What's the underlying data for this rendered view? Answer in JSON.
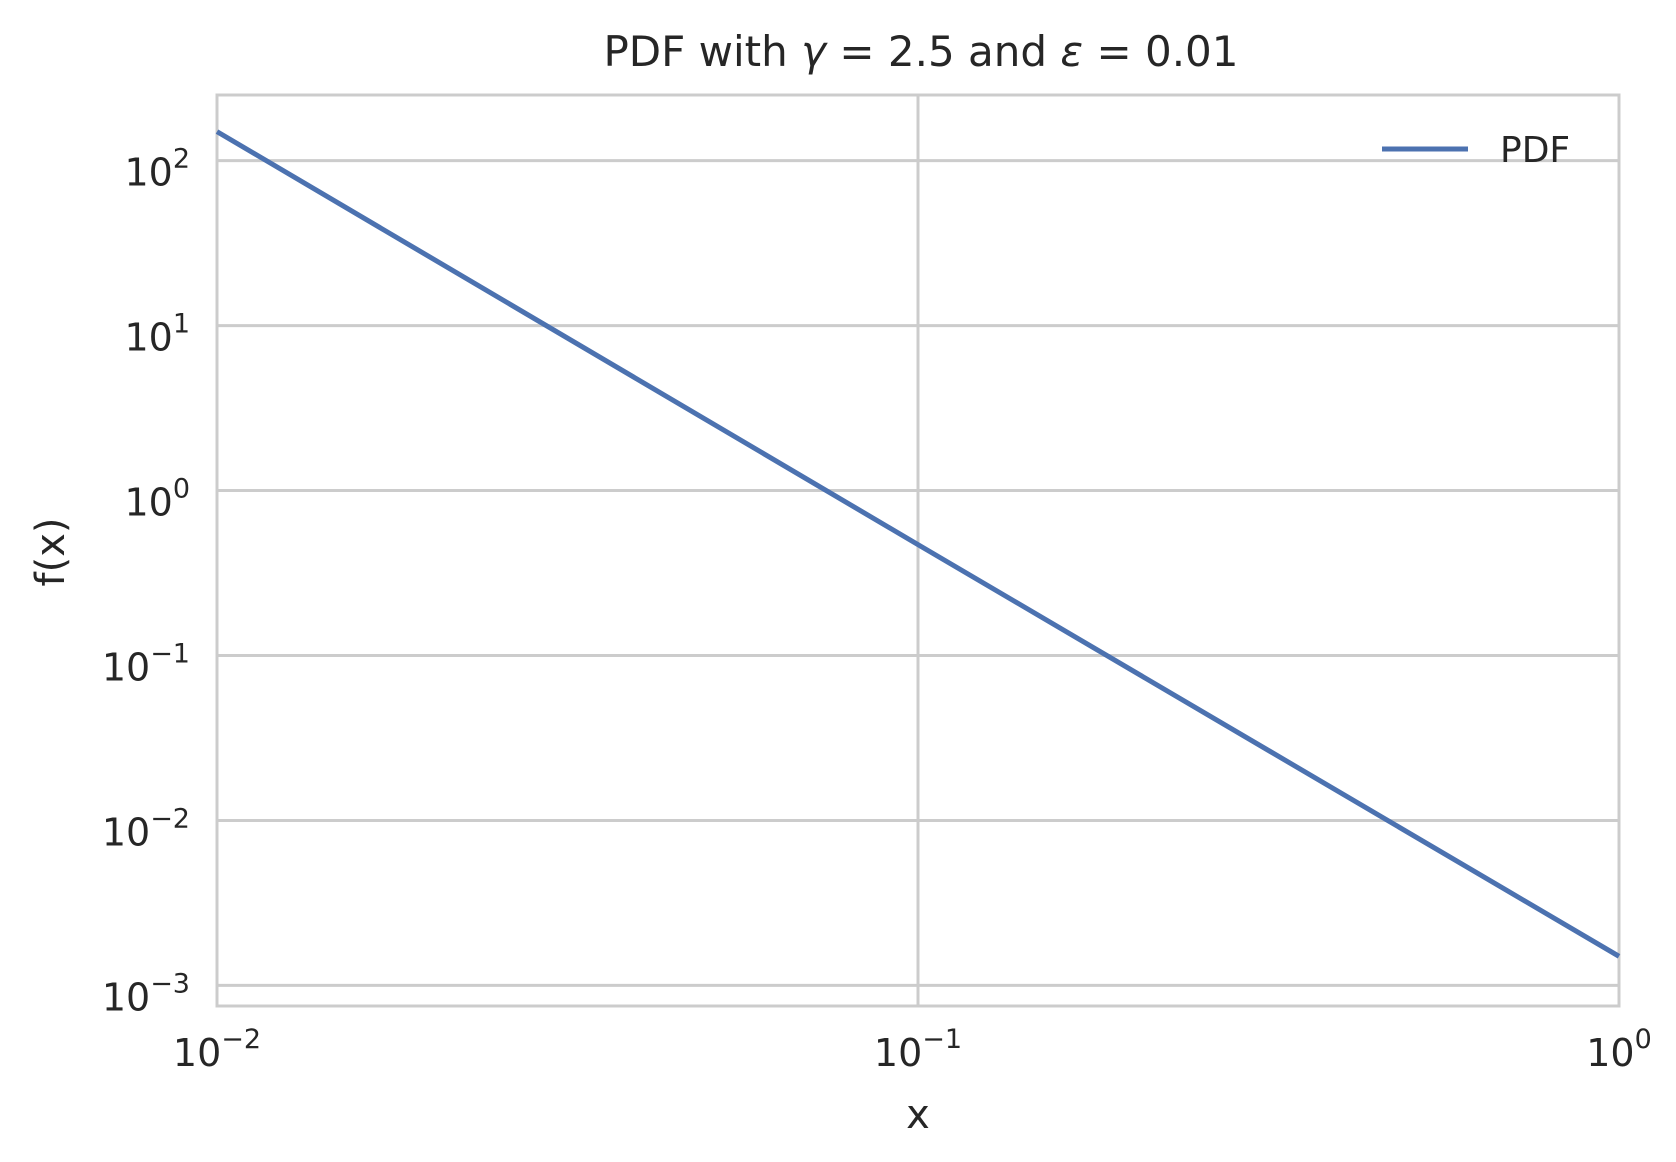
{
  "chart_data": {
    "type": "line",
    "title": "PDF with γ = 2.5 and ε = 0.01",
    "title_parts": {
      "prefix": "PDF with ",
      "gamma_symbol": "γ",
      "gamma_eq": " = 2.5",
      "middle": " and ",
      "eps_symbol": "ε",
      "eps_eq": " = 0.01"
    },
    "xlabel": "x",
    "ylabel": "f(x)",
    "x_scale": "log",
    "y_scale": "log",
    "xlim": [
      0.01,
      1
    ],
    "ylim": [
      0.00075,
      250
    ],
    "grid": true,
    "legend_position": "top-right",
    "x_ticks": [
      {
        "value": 0.01,
        "base": "10",
        "exp": "−2"
      },
      {
        "value": 0.1,
        "base": "10",
        "exp": "−1"
      },
      {
        "value": 1,
        "base": "10",
        "exp": "0"
      }
    ],
    "y_ticks": [
      {
        "value": 100,
        "base": "10",
        "exp": "2"
      },
      {
        "value": 10,
        "base": "10",
        "exp": "1"
      },
      {
        "value": 1,
        "base": "10",
        "exp": "0"
      },
      {
        "value": 0.1,
        "base": "10",
        "exp": "−1"
      },
      {
        "value": 0.01,
        "base": "10",
        "exp": "−2"
      },
      {
        "value": 0.001,
        "base": "10",
        "exp": "−3"
      }
    ],
    "series": [
      {
        "name": "PDF",
        "color": "#4c72b0",
        "x": [
          0.01,
          0.1,
          1
        ],
        "y": [
          150,
          0.47,
          0.0015
        ]
      }
    ],
    "colors": {
      "line": "#4c72b0",
      "grid": "#cccccc",
      "spine": "#cccccc",
      "text": "#262626",
      "background": "#ffffff"
    }
  }
}
